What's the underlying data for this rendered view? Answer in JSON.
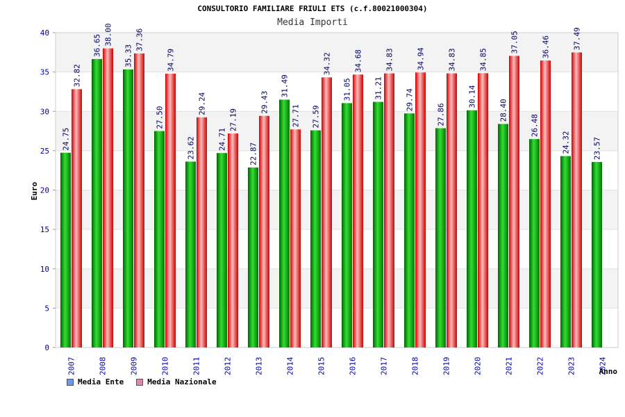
{
  "chart_data": {
    "type": "bar",
    "title": "CONSULTORIO FAMILIARE FRIULI ETS (c.f.80021000304)",
    "subtitle": "Media Importi",
    "xlabel": "Anno",
    "ylabel": "Euro",
    "ylim": [
      0,
      40
    ],
    "yticks": [
      "0",
      "5",
      "10",
      "15",
      "20",
      "25",
      "30",
      "35",
      "40"
    ],
    "categories": [
      "2007",
      "2008",
      "2009",
      "2010",
      "2011",
      "2012",
      "2013",
      "2014",
      "2015",
      "2016",
      "2017",
      "2018",
      "2019",
      "2020",
      "2021",
      "2022",
      "2023",
      "2024"
    ],
    "series": [
      {
        "name": "Media Ente",
        "legend_color": "#6699ee",
        "values": [
          24.75,
          36.65,
          35.33,
          27.5,
          23.62,
          24.71,
          22.87,
          31.49,
          27.59,
          31.05,
          31.21,
          29.74,
          27.86,
          30.14,
          28.4,
          26.48,
          24.32,
          23.57
        ],
        "labels": [
          "24.75",
          "36.65",
          "35.33",
          "27.50",
          "23.62",
          "24.71",
          "22.87",
          "31.49",
          "27.59",
          "31.05",
          "31.21",
          "29.74",
          "27.86",
          "30.14",
          "28.40",
          "26.48",
          "24.32",
          "23.57"
        ]
      },
      {
        "name": "Media Nazionale",
        "legend_color": "#dd88aa",
        "values": [
          32.82,
          38.0,
          37.36,
          34.79,
          29.24,
          27.19,
          29.43,
          27.71,
          34.32,
          34.68,
          34.83,
          34.94,
          34.83,
          34.85,
          37.05,
          36.46,
          37.49,
          null
        ],
        "labels": [
          "32.82",
          "38.00",
          "37.36",
          "34.79",
          "29.24",
          "27.19",
          "29.43",
          "27.71",
          "34.32",
          "34.68",
          "34.83",
          "34.94",
          "34.83",
          "34.85",
          "37.05",
          "36.46",
          "37.49",
          ""
        ]
      }
    ],
    "colors": {
      "green_dark": "#006600",
      "green_light": "#33dd33",
      "red_dark": "#cc0000",
      "red_light": "#ffbbbb",
      "axis_text": "#0000aa",
      "label_text": "#000066"
    }
  }
}
